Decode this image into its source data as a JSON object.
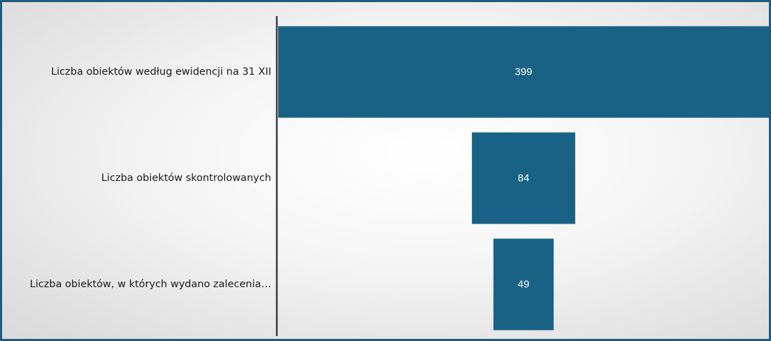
{
  "chart_data": {
    "type": "bar",
    "orientation": "horizontal",
    "layout": "funnel",
    "categories": [
      "Liczba obiektów według ewidencji na 31 XII",
      "Liczba obiektów skontrolowanych",
      "Liczba obiektów, w których wydano zalecenia…"
    ],
    "values": [
      399,
      84,
      49
    ],
    "data_labels": [
      "399",
      "84",
      "49"
    ],
    "title": "",
    "xlabel": "",
    "ylabel": "",
    "grid": false,
    "legend": "none",
    "colors": {
      "bar": "#1a6285",
      "axis": "#3a3a3a",
      "frame": "#1f5b7d",
      "label_text": "#1a1a1a",
      "value_text": "#ffffff"
    }
  }
}
